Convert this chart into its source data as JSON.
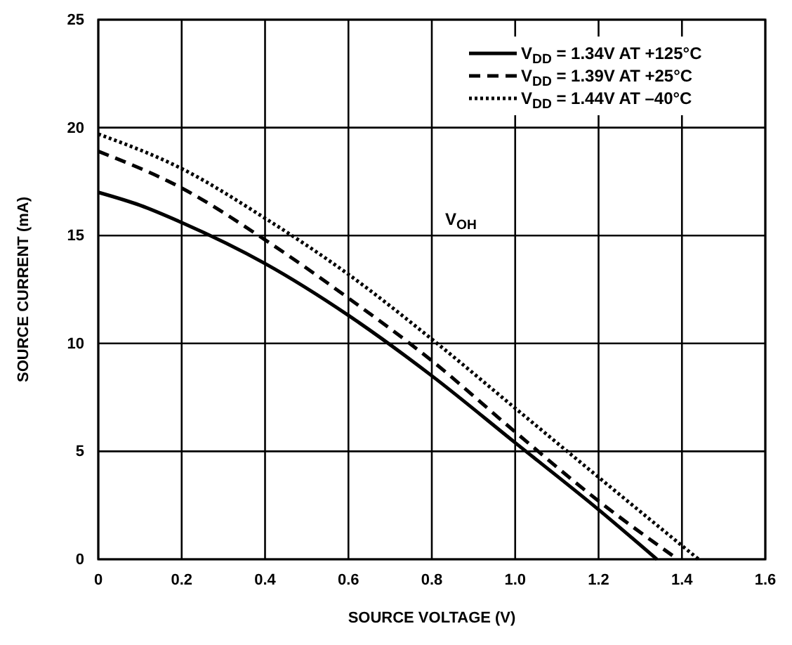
{
  "chart_data": {
    "type": "line",
    "xlabel": "SOURCE VOLTAGE (V)",
    "ylabel": "SOURCE CURRENT (mA)",
    "xlim": [
      0,
      1.6
    ],
    "xticks": [
      0,
      0.2,
      0.4,
      0.6,
      0.8,
      {
        "value": 1,
        "label": "1.0"
      },
      1.2,
      1.4,
      1.6
    ],
    "ylim": [
      0,
      25
    ],
    "yticks": [
      0,
      5,
      10,
      15,
      20,
      25
    ],
    "grid": true,
    "legend": "top right",
    "marker": "none",
    "series": [
      {
        "name": "V$_{DD}$ = 1.34V AT +125°C",
        "color": "#000000",
        "line_style": "solid",
        "x": [
          0,
          0.1,
          0.2,
          0.4,
          0.6,
          0.8,
          1.0,
          1.2,
          1.34
        ],
        "values": [
          17,
          16.4,
          15.6,
          13.7,
          11.3,
          8.5,
          5.4,
          2.3,
          0
        ]
      },
      {
        "name": "V$_{DD}$ = 1.39V AT +25°C",
        "color": "#000000",
        "line_style": "dashed",
        "x": [
          0,
          0.2,
          0.4,
          0.6,
          0.8,
          1.0,
          1.2,
          1.39
        ],
        "values": [
          18.9,
          17.2,
          14.8,
          12.1,
          9.2,
          5.9,
          2.7,
          0
        ]
      },
      {
        "name": "V$_{DD}$ = 1.44V AT –40°C",
        "color": "#000000",
        "line_style": "dotted",
        "x": [
          0,
          0.2,
          0.4,
          0.6,
          0.8,
          1.0,
          1.2,
          1.44
        ],
        "values": [
          19.7,
          18.1,
          15.8,
          13.2,
          10.2,
          7.0,
          3.8,
          0
        ]
      }
    ],
    "annotations": [
      "V$_{OH}$"
    ]
  }
}
